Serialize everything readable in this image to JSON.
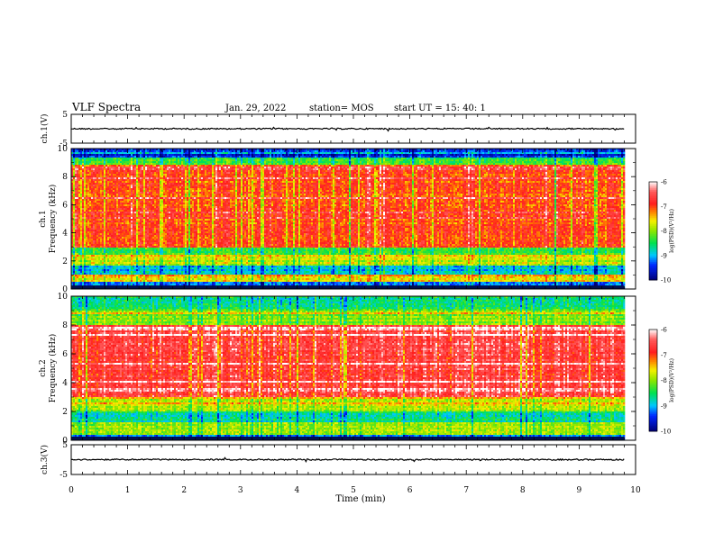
{
  "header": {
    "title": "VLF Spectra",
    "date": "Jan. 29, 2022",
    "station": "station= MOS",
    "start": "start  UT =   15: 40: 1"
  },
  "colors": {
    "low": "#0000aa",
    "mid_low": "#00c8ff",
    "mid": "#00e040",
    "mid_high": "#f0f000",
    "high": "#ff2020",
    "white": "#ffffff"
  },
  "chart_data": [
    {
      "type": "line",
      "panel": "ch1-waveform",
      "ylabel": "ch.1(V)",
      "xlim": [
        0,
        10
      ],
      "ylim": [
        -5,
        5
      ],
      "yticks": [
        "5",
        "-5"
      ],
      "trace_level": 0
    },
    {
      "type": "heatmap",
      "panel": "ch1-spectrogram",
      "ylabel": "ch.1\nFrequency (kHz)",
      "xlim": [
        0,
        10
      ],
      "ylim": [
        0,
        10
      ],
      "yticks": [
        "0",
        "2",
        "4",
        "6",
        "8",
        "10"
      ],
      "data_extent_min": 9.8,
      "bands": [
        {
          "from": 0.0,
          "to": 0.5,
          "level": -9.2
        },
        {
          "from": 0.5,
          "to": 1.0,
          "level": -7.6
        },
        {
          "from": 1.0,
          "to": 1.7,
          "level": -8.9
        },
        {
          "from": 1.7,
          "to": 2.4,
          "level": -7.8
        },
        {
          "from": 2.4,
          "to": 3.0,
          "level": -8.4
        },
        {
          "from": 3.0,
          "to": 8.8,
          "level": -7.0
        },
        {
          "from": 8.8,
          "to": 9.4,
          "level": -8.3
        },
        {
          "from": 9.4,
          "to": 10.0,
          "level": -9.5
        }
      ],
      "colorbar": {
        "label": "log(PSD)(V²/Hz)",
        "ticks": [
          "-6",
          "-7",
          "-8",
          "-9",
          "-10"
        ],
        "range": [
          -10,
          -6
        ]
      }
    },
    {
      "type": "heatmap",
      "panel": "ch2-spectrogram",
      "ylabel": "ch.2\nFrequency (kHz)",
      "xlim": [
        0,
        10
      ],
      "ylim": [
        0,
        10
      ],
      "yticks": [
        "0",
        "2",
        "4",
        "6",
        "8",
        "10"
      ],
      "data_extent_min": 9.8,
      "bands": [
        {
          "from": 0.0,
          "to": 0.4,
          "level": -9.0
        },
        {
          "from": 0.4,
          "to": 1.2,
          "level": -8.0
        },
        {
          "from": 1.2,
          "to": 2.0,
          "level": -8.6
        },
        {
          "from": 2.0,
          "to": 3.0,
          "level": -7.8
        },
        {
          "from": 3.0,
          "to": 8.0,
          "level": -6.6
        },
        {
          "from": 8.0,
          "to": 9.0,
          "level": -8.0
        },
        {
          "from": 9.0,
          "to": 10.0,
          "level": -8.6
        }
      ],
      "colorbar": {
        "label": "log(PSD)(V²/Hz)",
        "ticks": [
          "-6",
          "-7",
          "-8",
          "-9",
          "-10"
        ],
        "range": [
          -10,
          -6
        ]
      }
    },
    {
      "type": "line",
      "panel": "ch3-waveform",
      "ylabel": "ch.3(V)",
      "xlim": [
        0,
        10
      ],
      "ylim": [
        -5,
        5
      ],
      "yticks": [
        "5",
        "-5"
      ],
      "trace_level": 0
    }
  ],
  "x_axis": {
    "label": "Time (min)",
    "ticks": [
      "0",
      "1",
      "2",
      "3",
      "4",
      "5",
      "6",
      "7",
      "8",
      "9",
      "10"
    ]
  }
}
